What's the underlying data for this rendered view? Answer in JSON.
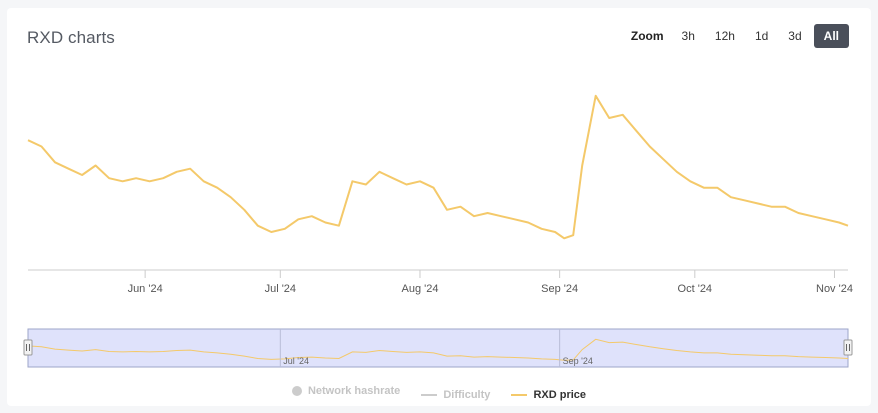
{
  "page": {
    "title": "RXD charts"
  },
  "zoom": {
    "label": "Zoom",
    "buttons": [
      "3h",
      "12h",
      "1d",
      "3d",
      "All"
    ],
    "active": "All"
  },
  "legend": [
    {
      "name": "Network hashrate",
      "symbol": "dot",
      "visible": false
    },
    {
      "name": "Difficulty",
      "symbol": "line",
      "visible": false
    },
    {
      "name": "RXD price",
      "symbol": "line",
      "visible": true
    }
  ],
  "colors": {
    "price_line": "#f4c96a",
    "navigator_fill": "#dfe2fb",
    "navigator_border": "#9ea6c8"
  },
  "chart_data": {
    "type": "line",
    "title": "RXD charts",
    "xlabel": "",
    "ylabel": "",
    "x_ticks": [
      "Jun '24",
      "Jul '24",
      "Aug '24",
      "Sep '24",
      "Oct '24",
      "Nov '24"
    ],
    "navigator_ticks": [
      "Jul '24",
      "Sep '24"
    ],
    "x_range": [
      "2024-05-06",
      "2024-11-04"
    ],
    "y_axis_labels_visible": false,
    "grid": false,
    "legend_position": "bottom-center",
    "series": [
      {
        "name": "RXD price",
        "x": [
          "2024-05-06",
          "2024-05-09",
          "2024-05-12",
          "2024-05-15",
          "2024-05-18",
          "2024-05-21",
          "2024-05-24",
          "2024-05-27",
          "2024-05-30",
          "2024-06-02",
          "2024-06-05",
          "2024-06-08",
          "2024-06-11",
          "2024-06-14",
          "2024-06-17",
          "2024-06-20",
          "2024-06-23",
          "2024-06-26",
          "2024-06-29",
          "2024-07-02",
          "2024-07-05",
          "2024-07-08",
          "2024-07-11",
          "2024-07-14",
          "2024-07-17",
          "2024-07-20",
          "2024-07-23",
          "2024-07-26",
          "2024-07-29",
          "2024-08-01",
          "2024-08-04",
          "2024-08-07",
          "2024-08-10",
          "2024-08-13",
          "2024-08-16",
          "2024-08-19",
          "2024-08-22",
          "2024-08-25",
          "2024-08-28",
          "2024-08-31",
          "2024-09-02",
          "2024-09-04",
          "2024-09-06",
          "2024-09-09",
          "2024-09-12",
          "2024-09-15",
          "2024-09-18",
          "2024-09-21",
          "2024-09-24",
          "2024-09-27",
          "2024-09-30",
          "2024-10-03",
          "2024-10-06",
          "2024-10-09",
          "2024-10-12",
          "2024-10-15",
          "2024-10-18",
          "2024-10-21",
          "2024-10-24",
          "2024-10-27",
          "2024-10-30",
          "2024-11-02",
          "2024-11-04"
        ],
        "y": [
          0.86,
          0.84,
          0.79,
          0.77,
          0.75,
          0.78,
          0.74,
          0.73,
          0.74,
          0.73,
          0.74,
          0.76,
          0.77,
          0.73,
          0.71,
          0.68,
          0.64,
          0.59,
          0.57,
          0.58,
          0.61,
          0.62,
          0.6,
          0.59,
          0.73,
          0.72,
          0.76,
          0.74,
          0.72,
          0.73,
          0.71,
          0.64,
          0.65,
          0.62,
          0.63,
          0.62,
          0.61,
          0.6,
          0.58,
          0.57,
          0.55,
          0.56,
          0.78,
          1.0,
          0.93,
          0.94,
          0.89,
          0.84,
          0.8,
          0.76,
          0.73,
          0.71,
          0.71,
          0.68,
          0.67,
          0.66,
          0.65,
          0.65,
          0.63,
          0.62,
          0.61,
          0.6,
          0.59
        ]
      }
    ]
  }
}
